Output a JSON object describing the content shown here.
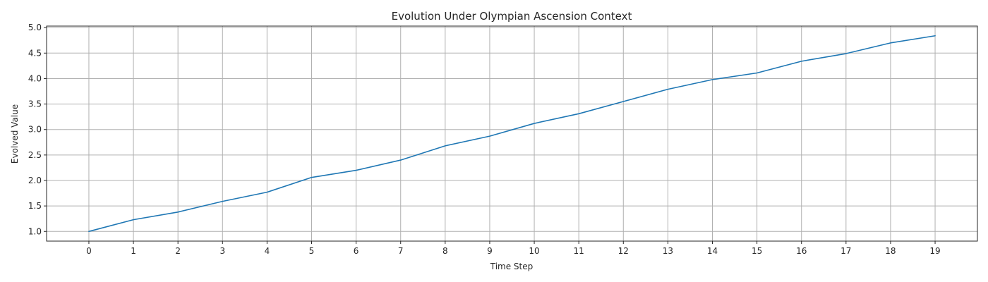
{
  "chart_data": {
    "type": "line",
    "title": "Evolution Under Olympian Ascension Context",
    "xlabel": "Time Step",
    "ylabel": "Evolved Value",
    "x": [
      0,
      1,
      2,
      3,
      4,
      5,
      6,
      7,
      8,
      9,
      10,
      11,
      12,
      13,
      14,
      15,
      16,
      17,
      18,
      19
    ],
    "series": [
      {
        "values": [
          1.0,
          1.23,
          1.38,
          1.59,
          1.77,
          2.06,
          2.2,
          2.4,
          2.68,
          2.87,
          3.12,
          3.31,
          3.55,
          3.79,
          3.98,
          4.11,
          4.34,
          4.49,
          4.7,
          4.84
        ],
        "color": "#1f77b4"
      }
    ],
    "xticks": [
      "0",
      "1",
      "2",
      "3",
      "4",
      "5",
      "6",
      "7",
      "8",
      "9",
      "10",
      "11",
      "12",
      "13",
      "14",
      "15",
      "16",
      "17",
      "18",
      "19"
    ],
    "yticks": [
      "1.0",
      "1.5",
      "2.0",
      "2.5",
      "3.0",
      "3.5",
      "4.0",
      "4.5",
      "5.0"
    ],
    "xlim": [
      -0.95,
      19.95
    ],
    "ylim": [
      0.81,
      5.03
    ],
    "grid": true,
    "legend": "none"
  }
}
